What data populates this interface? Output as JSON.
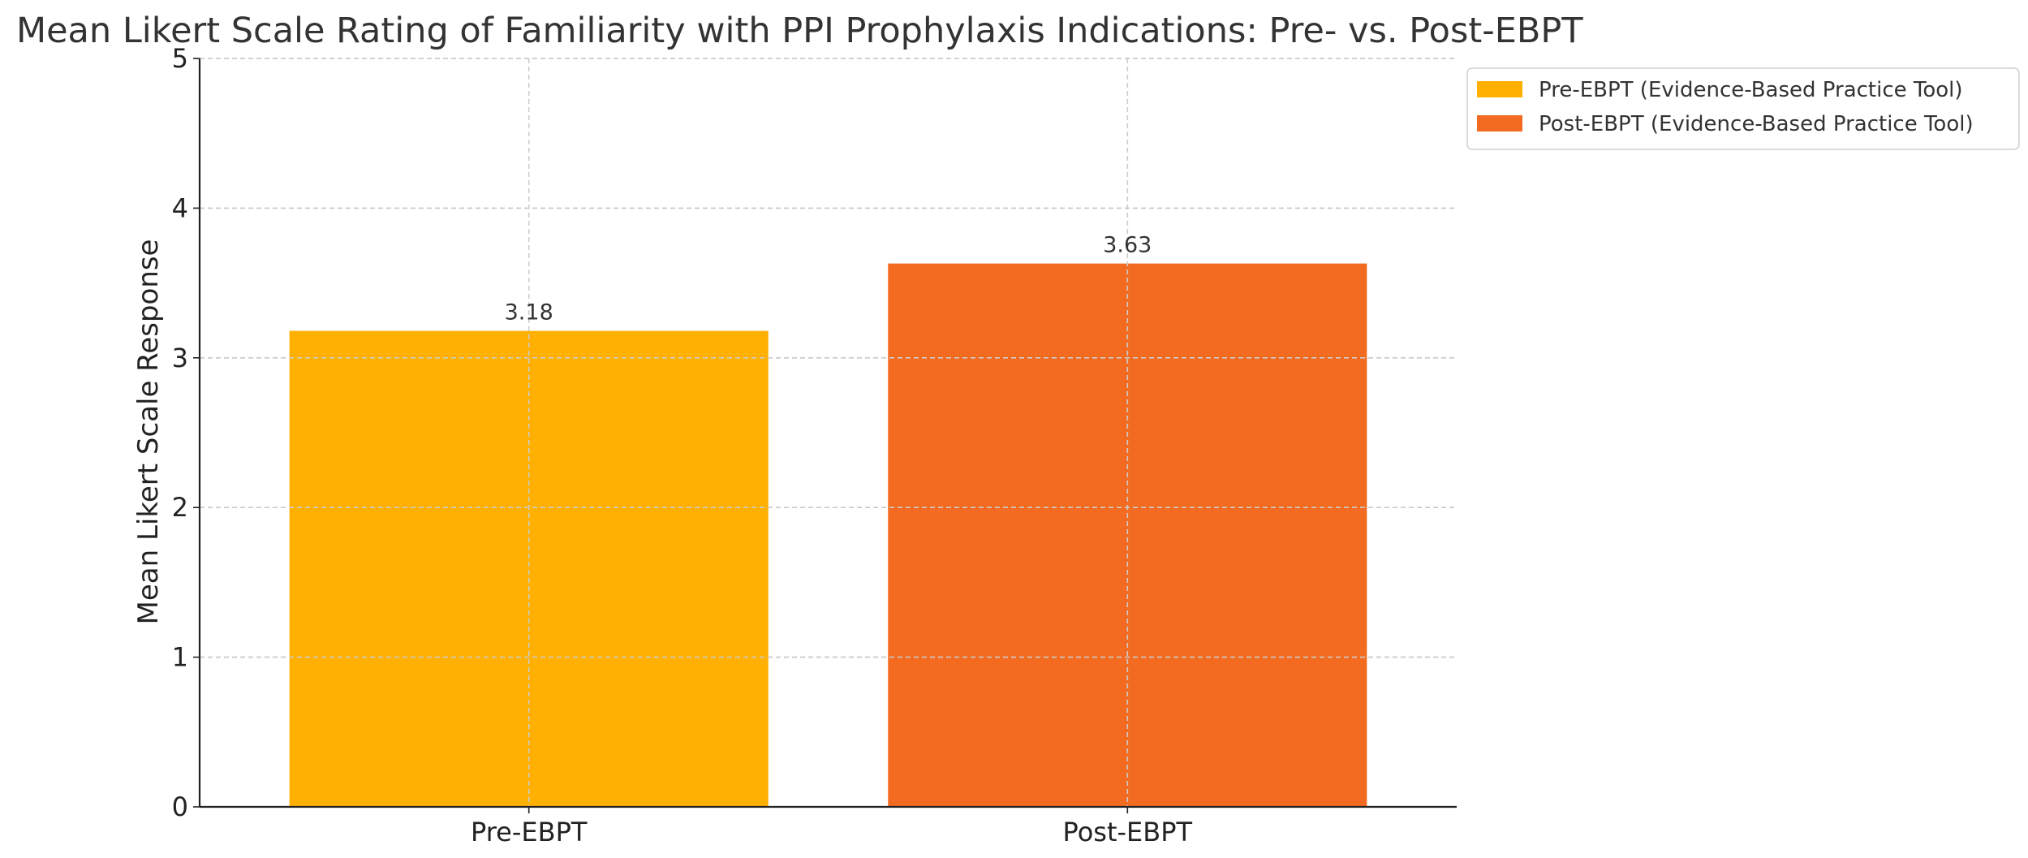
{
  "chart_data": {
    "type": "bar",
    "title": "Mean Likert Scale Rating of Familiarity with PPI Prophylaxis Indications: Pre- vs. Post-EBPT",
    "xlabel": "",
    "ylabel": "Mean Likert Scale Response",
    "categories": [
      "Pre-EBPT",
      "Post-EBPT"
    ],
    "values": [
      3.18,
      3.63
    ],
    "data_labels": [
      "3.18",
      "3.63"
    ],
    "colors": [
      "#FFB000",
      "#F26B21"
    ],
    "ylim": [
      0,
      5
    ],
    "yticks": [
      0,
      1,
      2,
      3,
      4,
      5
    ],
    "ytick_labels": [
      "0",
      "1",
      "2",
      "3",
      "4",
      "5"
    ],
    "grid": true,
    "legend": {
      "placement": "outside-top-right",
      "entries": [
        {
          "label": "Pre-EBPT (Evidence-Based Practice Tool)",
          "color": "#FFB000"
        },
        {
          "label": "Post-EBPT (Evidence-Based Practice Tool)",
          "color": "#F26B21"
        }
      ]
    }
  }
}
